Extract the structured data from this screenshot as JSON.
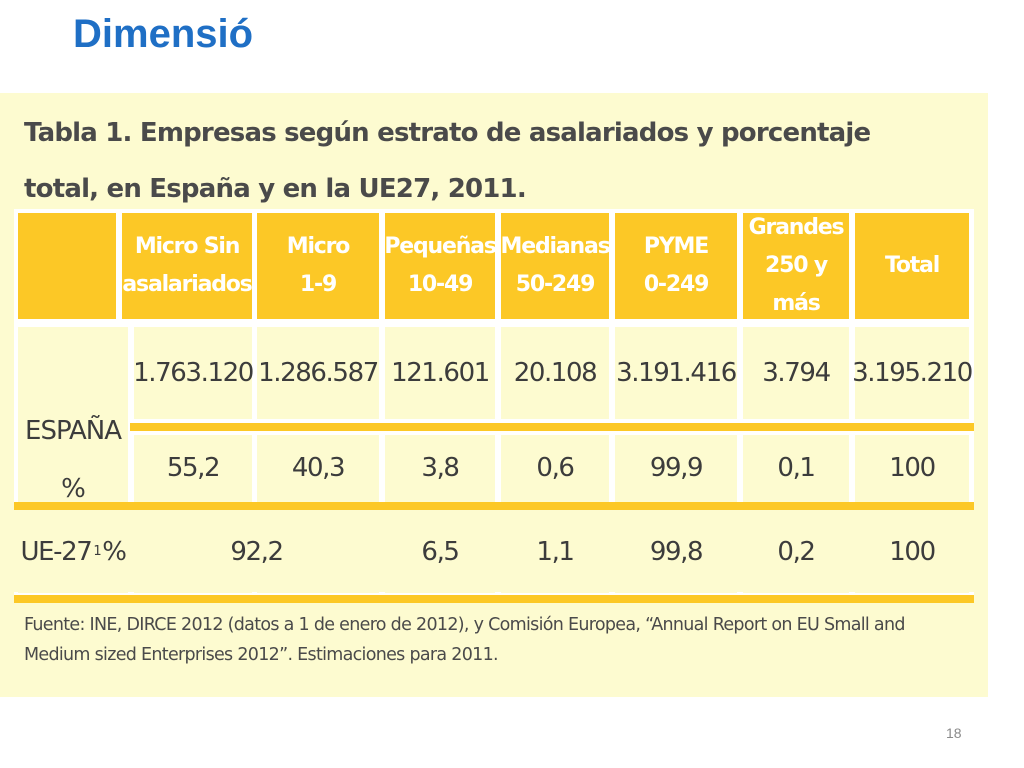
{
  "slide": {
    "title": "Dimensió",
    "page_number": "18"
  },
  "table": {
    "caption": "Tabla 1. Empresas según estrato de asalariados y porcentaje total, en España y en la UE27, 2011.",
    "columns": [
      {
        "line1": "Micro Sin",
        "line2": "asalariados"
      },
      {
        "line1": "Micro",
        "line2": "1-9"
      },
      {
        "line1": "Pequeñas",
        "line2": "10-49"
      },
      {
        "line1": "Medianas",
        "line2": "50-249"
      },
      {
        "line1": "PYME",
        "line2": "0-249"
      },
      {
        "line1": "Grandes",
        "line2": "250 y más"
      },
      {
        "line1": "Total",
        "line2": ""
      }
    ],
    "espana": {
      "label_line1": "ESPAÑA",
      "label_line2": "%",
      "counts": [
        "1.763.120",
        "1.286.587",
        "121.601",
        "20.108",
        "3.191.416",
        "3.794",
        "3.195.210"
      ],
      "percent": [
        "55,2",
        "40,3",
        "3,8",
        "0,6",
        "99,9",
        "0,1",
        "100"
      ]
    },
    "ue27": {
      "label_prefix": "UE-27",
      "label_sup": "1",
      "label_suffix": "%",
      "micro_combined": "92,2",
      "values": [
        "6,5",
        "1,1",
        "99,8",
        "0,2",
        "100"
      ]
    },
    "source": "Fuente: INE, DIRCE 2012 (datos a 1 de enero de 2012), y Comisión Europea, “Annual Report on EU Small and Medium sized Enterprises 2012”. Estimaciones para 2011."
  },
  "colors": {
    "title_blue": "#1f6fc5",
    "header_yellow": "#fcc826",
    "panel_cream": "#fdfbd0"
  }
}
